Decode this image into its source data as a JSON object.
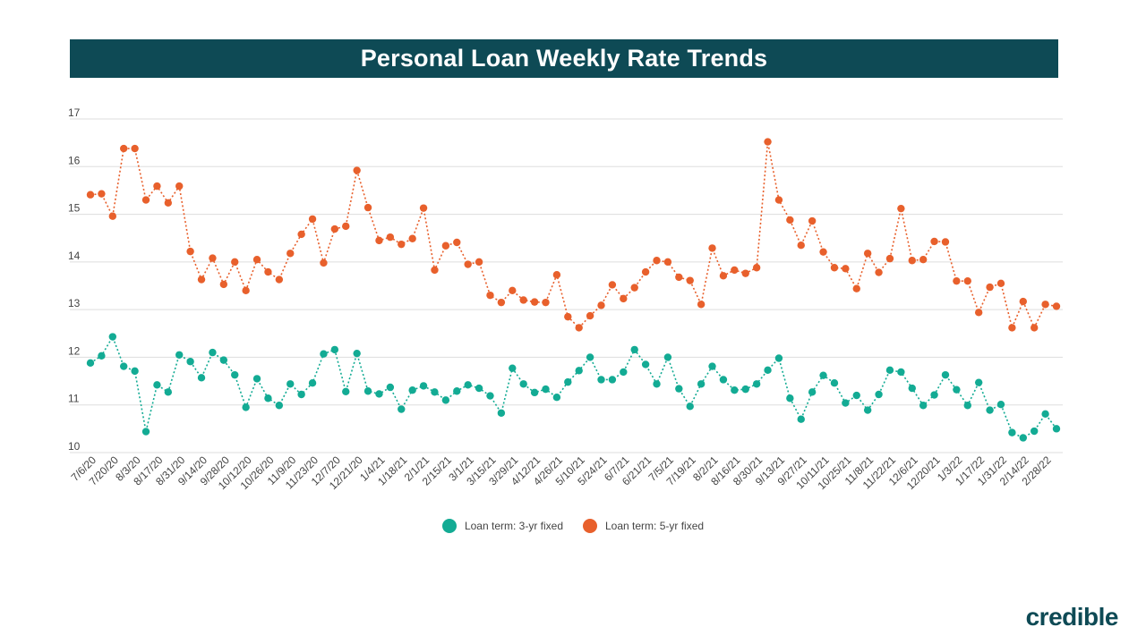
{
  "header": {
    "title": "Personal Loan Weekly Rate Trends"
  },
  "legend": {
    "series_3yr": "Loan term: 3-yr fixed",
    "series_5yr": "Loan term: 5-yr fixed"
  },
  "brand": {
    "name": "credible"
  },
  "colors": {
    "title_bg": "#0e4a55",
    "series_3yr": "#13ab94",
    "series_5yr": "#e8602c",
    "grid": "#dddddd"
  },
  "chart_data": {
    "type": "line",
    "title": "Personal Loan Weekly Rate Trends",
    "xlabel": "",
    "ylabel": "",
    "ylim": [
      10,
      17
    ],
    "y_ticks": [
      10,
      11,
      12,
      13,
      14,
      15,
      16,
      17
    ],
    "grid": true,
    "legend_position": "bottom",
    "x_tick_labels": [
      "7/6/20",
      "7/20/20",
      "8/3/20",
      "8/17/20",
      "8/31/20",
      "9/14/20",
      "9/28/20",
      "10/12/20",
      "10/26/20",
      "11/9/20",
      "11/23/20",
      "12/7/20",
      "12/21/20",
      "1/4/21",
      "1/18/21",
      "2/1/21",
      "2/15/21",
      "3/1/21",
      "3/15/21",
      "3/29/21",
      "4/12/21",
      "4/26/21",
      "5/10/21",
      "5/24/21",
      "6/7/21",
      "6/21/21",
      "7/5/21",
      "7/19/21",
      "8/2/21",
      "8/16/21",
      "8/30/21",
      "9/13/21",
      "9/27/21",
      "10/11/21",
      "10/25/21",
      "11/8/21",
      "11/22/21",
      "12/6/21",
      "12/20/21",
      "1/3/22",
      "1/17/22",
      "1/31/22",
      "2/14/22",
      "2/28/22"
    ],
    "series": [
      {
        "name": "Loan term: 3-yr fixed",
        "color": "#13ab94",
        "values": [
          11.88,
          12.03,
          12.43,
          11.81,
          11.71,
          10.44,
          11.42,
          11.27,
          12.05,
          11.91,
          11.57,
          12.1,
          11.94,
          11.63,
          10.95,
          11.55,
          11.14,
          10.99,
          11.44,
          11.22,
          11.46,
          12.07,
          12.16,
          11.28,
          12.08,
          11.29,
          11.23,
          11.37,
          10.91,
          11.31,
          11.4,
          11.27,
          11.1,
          11.29,
          11.42,
          11.35,
          11.19,
          10.83,
          11.77,
          11.44,
          11.26,
          11.33,
          11.16,
          11.48,
          11.72,
          12.0,
          11.53,
          11.53,
          11.69,
          12.16,
          11.85,
          11.44,
          12.0,
          11.34,
          10.97,
          11.44,
          11.81,
          11.53,
          11.31,
          11.33,
          11.44,
          11.73,
          11.98,
          11.14,
          10.7,
          11.27,
          11.62,
          11.46,
          11.04,
          11.2,
          10.89,
          11.22,
          11.73,
          11.69,
          11.35,
          10.99,
          11.21,
          11.63,
          11.32,
          10.99,
          11.47,
          10.89,
          11.01,
          10.42,
          10.31,
          10.45,
          10.81,
          10.5
        ]
      },
      {
        "name": "Loan term: 5-yr fixed",
        "color": "#e8602c",
        "values": [
          15.41,
          15.43,
          14.96,
          16.38,
          16.38,
          15.3,
          15.59,
          15.24,
          15.59,
          14.22,
          13.63,
          14.08,
          13.53,
          14.0,
          13.4,
          14.05,
          13.79,
          13.63,
          14.18,
          14.58,
          14.9,
          13.98,
          14.69,
          14.75,
          15.92,
          15.14,
          14.45,
          14.52,
          14.37,
          14.49,
          15.13,
          13.83,
          14.34,
          14.41,
          13.95,
          14.0,
          13.3,
          13.15,
          13.4,
          13.2,
          13.16,
          13.15,
          13.73,
          12.85,
          12.62,
          12.87,
          13.09,
          13.52,
          13.23,
          13.46,
          13.79,
          14.03,
          14.0,
          13.68,
          13.61,
          13.11,
          14.29,
          13.71,
          13.83,
          13.76,
          13.88,
          16.52,
          15.3,
          14.88,
          14.35,
          14.86,
          14.21,
          13.88,
          13.86,
          13.44,
          14.18,
          13.78,
          14.07,
          15.12,
          14.03,
          14.05,
          14.43,
          14.42,
          13.6,
          13.6,
          12.94,
          13.47,
          13.55,
          12.62,
          13.17,
          12.62,
          13.11,
          13.07
        ]
      }
    ]
  }
}
